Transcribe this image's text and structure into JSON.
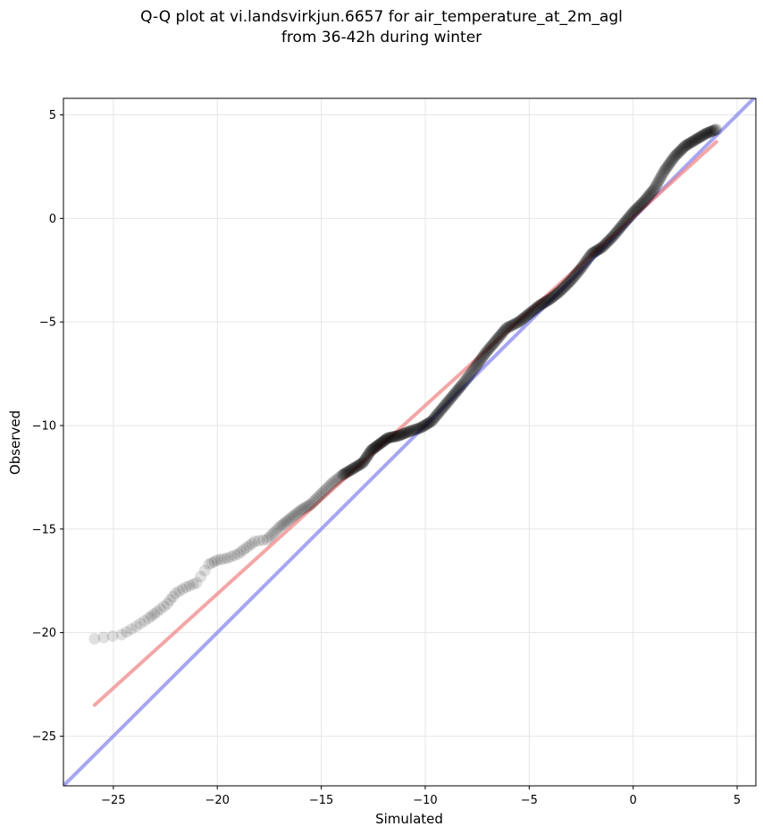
{
  "title_line1": "Q-Q plot at vi.landsvirkjun.6657 for air_temperature_at_2m_agl",
  "title_line2": "from 36-42h during winter",
  "chart_data": {
    "type": "scatter",
    "xlabel": "Simulated",
    "ylabel": "Observed",
    "xlim": [
      -27.4,
      5.9
    ],
    "ylim": [
      -27.4,
      5.8
    ],
    "xticks": [
      -25,
      -20,
      -15,
      -10,
      -5,
      0,
      5
    ],
    "yticks": [
      -25,
      -20,
      -15,
      -10,
      -5,
      0,
      5
    ],
    "xtick_labels": [
      "−25",
      "−20",
      "−15",
      "−10",
      "−5",
      "0",
      "5"
    ],
    "ytick_labels": [
      "−25",
      "−20",
      "−15",
      "−10",
      "−5",
      "0",
      "5"
    ],
    "grid": true,
    "colors": {
      "points": "#000000",
      "fit_line": "#f08080",
      "identity_line": "#8080f0"
    },
    "identity_line": {
      "x": [
        -27.4,
        5.9
      ],
      "y": [
        -27.4,
        5.9
      ]
    },
    "fit_line": {
      "x": [
        -25.9,
        4.0
      ],
      "y": [
        -23.5,
        3.7
      ]
    },
    "quantile_curve": {
      "x": [
        -25.9,
        -24.6,
        -23.9,
        -23.3,
        -22.9,
        -22.4,
        -22.0,
        -21.5,
        -21.0,
        -20.4,
        -20.0,
        -19.5,
        -19.0,
        -18.6,
        -18.2,
        -17.6,
        -17.0,
        -16.5,
        -16.0,
        -15.5,
        -15.0,
        -14.5,
        -14.0,
        -13.5,
        -13.0,
        -12.6,
        -12.2,
        -11.8,
        -11.3,
        -10.8,
        -10.2,
        -9.7,
        -9.2,
        -8.7,
        -8.2,
        -7.6,
        -7.1,
        -6.6,
        -6.1,
        -5.5,
        -5.0,
        -4.5,
        -4.0,
        -3.5,
        -3.0,
        -2.5,
        -2.0,
        -1.5,
        -1.0,
        -0.5,
        0.0,
        0.5,
        1.0,
        1.5,
        2.0,
        2.5,
        3.0,
        3.5,
        4.0
      ],
      "y": [
        -20.3,
        -20.1,
        -19.7,
        -19.3,
        -19.0,
        -18.6,
        -18.1,
        -17.8,
        -17.6,
        -16.7,
        -16.5,
        -16.4,
        -16.2,
        -15.9,
        -15.6,
        -15.5,
        -14.9,
        -14.5,
        -14.1,
        -13.8,
        -13.3,
        -12.8,
        -12.4,
        -12.1,
        -11.8,
        -11.2,
        -10.9,
        -10.6,
        -10.5,
        -10.3,
        -10.1,
        -9.8,
        -9.2,
        -8.6,
        -8.0,
        -7.2,
        -6.5,
        -5.9,
        -5.3,
        -5.0,
        -4.6,
        -4.2,
        -3.9,
        -3.5,
        -3.0,
        -2.4,
        -1.7,
        -1.4,
        -0.9,
        -0.3,
        0.3,
        0.8,
        1.4,
        2.3,
        3.0,
        3.5,
        3.8,
        4.1,
        4.3
      ]
    }
  }
}
